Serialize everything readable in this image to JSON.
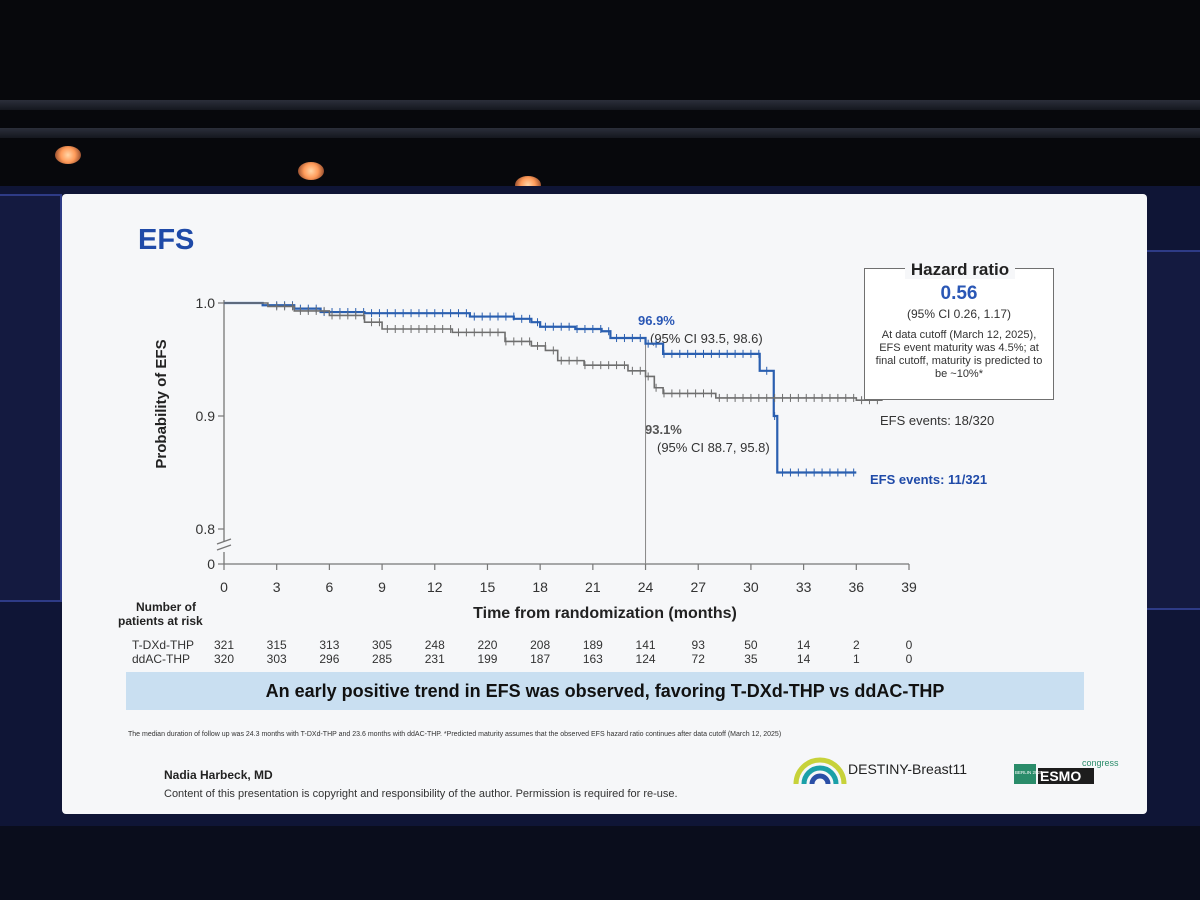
{
  "slide": {
    "title": "EFS",
    "hazard_ratio": {
      "title": "Hazard ratio",
      "value": "0.56",
      "ci": "(95% CI 0.26, 1.17)",
      "note": "At data cutoff (March 12, 2025), EFS event maturity was 4.5%; at final cutoff, maturity is predicted to be ~10%*"
    },
    "annotations": {
      "upper_pct": "96.9%",
      "upper_ci": "(95% CI 93.5, 98.6)",
      "lower_pct": "93.1%",
      "lower_ci": "(95% CI 88.7, 95.8)",
      "events_tdxd": "EFS events: 11/321",
      "events_ddac": "EFS events: 18/320"
    },
    "risk_table": {
      "header_line1": "Number of",
      "header_line2": "patients at risk",
      "rows": [
        {
          "label": "T-DXd-THP",
          "values": [
            "321",
            "315",
            "313",
            "305",
            "248",
            "220",
            "208",
            "189",
            "141",
            "93",
            "50",
            "14",
            "2",
            "0"
          ]
        },
        {
          "label": "ddAC-THP",
          "values": [
            "320",
            "303",
            "296",
            "285",
            "231",
            "199",
            "187",
            "163",
            "124",
            "72",
            "35",
            "14",
            "1",
            "0"
          ]
        }
      ]
    },
    "banner": "An early positive trend in EFS was observed, favoring T-DXd-THP vs ddAC-THP",
    "footnote": "The median duration of follow up was 24.3 months with T-DXd-THP and 23.6 months with ddAC-THP. *Predicted maturity assumes that the observed EFS hazard ratio continues after data cutoff (March 12, 2025)",
    "author": "Nadia Harbeck, MD",
    "copyright": "Content of this presentation is copyright and responsibility of the author. Permission is required for re-use.",
    "logo_destiny": "DESTINY-Breast11",
    "logo_esmo": "ESMO",
    "logo_congress": "congress",
    "logo_berlin": "BERLIN 2025"
  },
  "chart_data": {
    "type": "line",
    "xlabel": "Time from randomization (months)",
    "ylabel": "Probability of EFS",
    "x_ticks": [
      "0",
      "3",
      "6",
      "9",
      "12",
      "15",
      "18",
      "21",
      "24",
      "27",
      "30",
      "33",
      "36",
      "39"
    ],
    "y_ticks": [
      "0",
      "0.8",
      "0.9",
      "1.0"
    ],
    "xlim": [
      0,
      39
    ],
    "ylim": [
      0.77,
      1.0
    ],
    "y_axis_break": true,
    "series": [
      {
        "name": "T-DXd-THP",
        "color": "#2a5fb0",
        "points": [
          [
            0,
            1.0
          ],
          [
            2.2,
            1.0
          ],
          [
            2.2,
            0.998
          ],
          [
            4,
            0.998
          ],
          [
            4,
            0.995
          ],
          [
            5.5,
            0.992
          ],
          [
            8,
            0.991
          ],
          [
            14,
            0.988
          ],
          [
            16,
            0.988
          ],
          [
            16.5,
            0.986
          ],
          [
            17.5,
            0.983
          ],
          [
            18,
            0.979
          ],
          [
            20,
            0.977
          ],
          [
            21.5,
            0.975
          ],
          [
            22,
            0.969
          ],
          [
            24,
            0.964
          ],
          [
            25,
            0.955
          ],
          [
            30.5,
            0.954
          ],
          [
            30.5,
            0.94
          ],
          [
            31,
            0.94
          ],
          [
            31.3,
            0.9
          ],
          [
            31.5,
            0.85
          ],
          [
            36,
            0.85
          ]
        ]
      },
      {
        "name": "ddAC-THP",
        "color": "#6e6e6e",
        "points": [
          [
            0,
            1.0
          ],
          [
            2.5,
            1.0
          ],
          [
            2.5,
            0.997
          ],
          [
            4,
            0.993
          ],
          [
            6,
            0.989
          ],
          [
            8,
            0.983
          ],
          [
            9,
            0.977
          ],
          [
            13,
            0.974
          ],
          [
            16,
            0.966
          ],
          [
            17,
            0.966
          ],
          [
            17.5,
            0.962
          ],
          [
            18.3,
            0.958
          ],
          [
            19,
            0.949
          ],
          [
            20.5,
            0.945
          ],
          [
            22,
            0.945
          ],
          [
            23,
            0.94
          ],
          [
            24,
            0.935
          ],
          [
            24.5,
            0.925
          ],
          [
            25,
            0.92
          ],
          [
            28,
            0.916
          ],
          [
            36,
            0.914
          ],
          [
            37.5,
            0.914
          ]
        ]
      }
    ],
    "landmark_x": 24
  }
}
